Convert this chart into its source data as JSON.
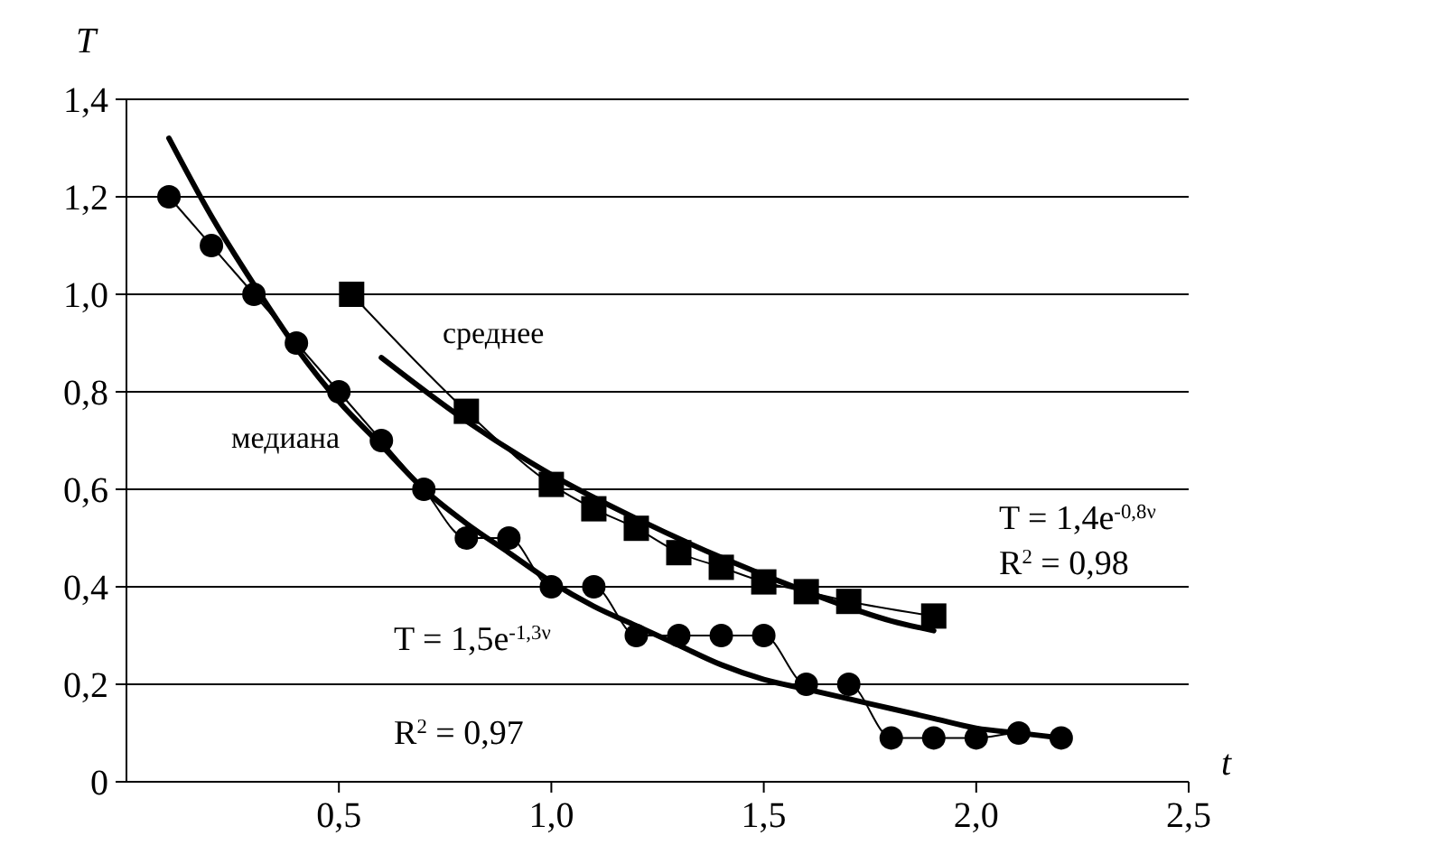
{
  "chart_data": {
    "type": "line",
    "xlabel": "t",
    "ylabel": "T",
    "xlim": [
      0,
      2.5
    ],
    "ylim": [
      0,
      1.4
    ],
    "xticks": [
      {
        "value": 0.5,
        "label": "0,5"
      },
      {
        "value": 1,
        "label": "1,0"
      },
      {
        "value": 1.5,
        "label": "1,5"
      },
      {
        "value": 2,
        "label": "2,0"
      },
      {
        "value": 2.5,
        "label": "2,5"
      }
    ],
    "yticks": [
      {
        "value": 0,
        "label": "0"
      },
      {
        "value": 0.2,
        "label": "0,2"
      },
      {
        "value": 0.4,
        "label": "0,4"
      },
      {
        "value": 0.6,
        "label": "0,6"
      },
      {
        "value": 0.8,
        "label": "0,8"
      },
      {
        "value": 1,
        "label": "1,0"
      },
      {
        "value": 1.2,
        "label": "1,2"
      },
      {
        "value": 1.4,
        "label": "1,4"
      }
    ],
    "grid": "y",
    "series": [
      {
        "name": "медиана",
        "color": "#000000",
        "marker": "circle",
        "x": [
          0.1,
          0.2,
          0.3,
          0.4,
          0.5,
          0.6,
          0.7,
          0.8,
          0.9,
          1.0,
          1.1,
          1.2,
          1.3,
          1.4,
          1.5,
          1.6,
          1.7,
          1.8,
          1.9,
          2.0,
          2.1,
          2.2
        ],
        "values": [
          1.2,
          1.1,
          1.0,
          0.9,
          0.8,
          0.7,
          0.6,
          0.5,
          0.5,
          0.4,
          0.4,
          0.3,
          0.3,
          0.3,
          0.3,
          0.2,
          0.2,
          0.09,
          0.09,
          0.09,
          0.1,
          0.09
        ]
      },
      {
        "name": "среднее",
        "color": "#000000",
        "marker": "square",
        "x": [
          0.53,
          0.8,
          1.0,
          1.1,
          1.2,
          1.3,
          1.4,
          1.5,
          1.6,
          1.7,
          1.9
        ],
        "values": [
          1.0,
          0.76,
          0.61,
          0.56,
          0.52,
          0.47,
          0.44,
          0.41,
          0.39,
          0.37,
          0.34
        ]
      },
      {
        "color": "#000000",
        "marker": "none",
        "x": [
          0.1,
          0.2,
          0.3,
          0.4,
          0.5,
          0.6,
          0.7,
          0.8,
          0.9,
          1.0,
          1.1,
          1.2,
          1.3,
          1.4,
          1.5,
          1.6,
          1.7,
          1.8,
          1.9,
          2.0,
          2.1,
          2.2
        ],
        "values": [
          1.32,
          1.16,
          1.02,
          0.89,
          0.78,
          0.69,
          0.6,
          0.53,
          0.47,
          0.41,
          0.36,
          0.32,
          0.28,
          0.24,
          0.21,
          0.19,
          0.17,
          0.15,
          0.13,
          0.11,
          0.1,
          0.09
        ]
      },
      {
        "color": "#000000",
        "marker": "none",
        "x": [
          0.6,
          0.8,
          1.0,
          1.2,
          1.4,
          1.6,
          1.8,
          1.9
        ],
        "values": [
          0.87,
          0.74,
          0.63,
          0.54,
          0.46,
          0.39,
          0.33,
          0.31
        ]
      }
    ],
    "annotations": [
      "T = 1,4e$^{-0,8ν}$",
      "R$^{2}$ = 0,98",
      "T = 1,5e$^{-1,3ν}$",
      "R$^{2}$ = 0,97"
    ]
  }
}
